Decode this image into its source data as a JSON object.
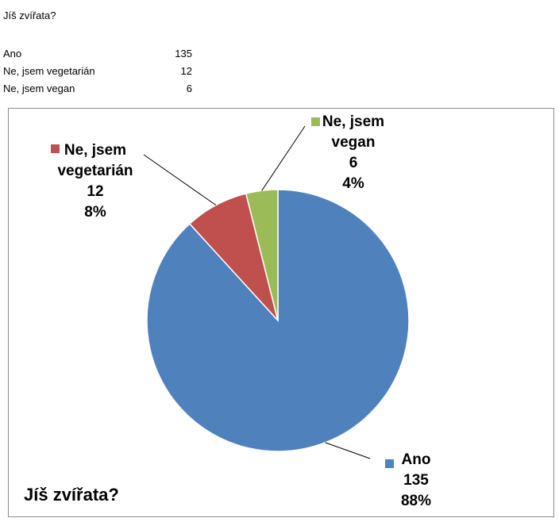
{
  "sheet": {
    "title": "Jíš zvířata?",
    "rows": [
      {
        "label": "Ano",
        "value": "135"
      },
      {
        "label": "Ne, jsem vegetarián",
        "value": "12"
      },
      {
        "label": "Ne, jsem vegan",
        "value": "6"
      }
    ]
  },
  "chart_data": {
    "type": "pie",
    "title": "Jíš zvířata?",
    "slices": [
      {
        "label": "Ano",
        "value": 135,
        "percent": "88%",
        "color": "#4f81bd"
      },
      {
        "label": "Ne, jsem vegetarián",
        "value": 12,
        "percent": "8%",
        "color": "#c0504d"
      },
      {
        "label": "Ne, jsem vegan",
        "value": 6,
        "percent": "4%",
        "color": "#9bbb59"
      }
    ],
    "data_labels": [
      {
        "lines": [
          "Ano",
          "135",
          "88%"
        ]
      },
      {
        "lines": [
          "Ne, jsem",
          "vegetarián",
          "12",
          "8%"
        ]
      },
      {
        "lines": [
          "Ne, jsem",
          "vegan",
          "6",
          "4%"
        ]
      }
    ],
    "legend": "none"
  }
}
